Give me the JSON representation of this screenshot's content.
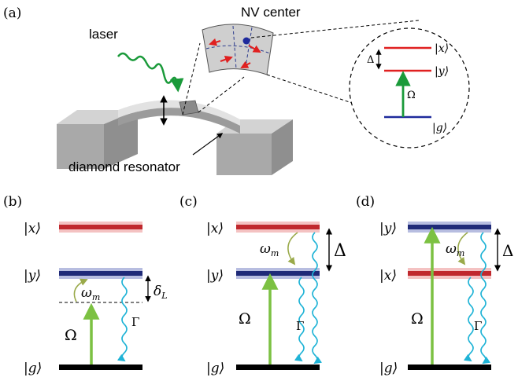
{
  "panel_a": {
    "label": "(a)",
    "laser_label": "laser",
    "nv_label": "NV center",
    "resonator_label": "diamond resonator",
    "inset": {
      "delta": "Δ",
      "omega": "Ω",
      "ket_x": "|x⟩",
      "ket_y": "|y⟩",
      "ket_g": "|g⟩"
    }
  },
  "panel_b": {
    "label": "(b)",
    "ket_x": "|x⟩",
    "ket_y": "|y⟩",
    "ket_g": "|g⟩",
    "omega_m": "ω",
    "omega_m_sub": "m",
    "delta_L": "δ",
    "delta_L_sub": "L",
    "Omega": "Ω",
    "Gamma": "Γ"
  },
  "panel_c": {
    "label": "(c)",
    "ket_x": "|x⟩",
    "ket_y": "|y⟩",
    "ket_g": "|g⟩",
    "omega_m": "ω",
    "omega_m_sub": "m",
    "Delta": "Δ",
    "Omega": "Ω",
    "Gamma": "Γ"
  },
  "panel_d": {
    "label": "(d)",
    "ket_y": "|y⟩",
    "ket_x": "|x⟩",
    "ket_g": "|g⟩",
    "omega_m": "ω",
    "omega_m_sub": "m",
    "Delta": "Δ",
    "Omega": "Ω",
    "Gamma": "Γ"
  },
  "colors": {
    "red_level": "#c0282d",
    "red_glow": "#f4c2c2",
    "blue_level": "#1f2a78",
    "blue_glow": "#b7bde0",
    "ground": "#000000",
    "laser_green": "#7cc142",
    "decay_cyan": "#1fb3d6",
    "phonon_olive": "#9aaa4a",
    "dark_green_arrow": "#1a9a3a",
    "block_gray": "#b3b3b3"
  }
}
